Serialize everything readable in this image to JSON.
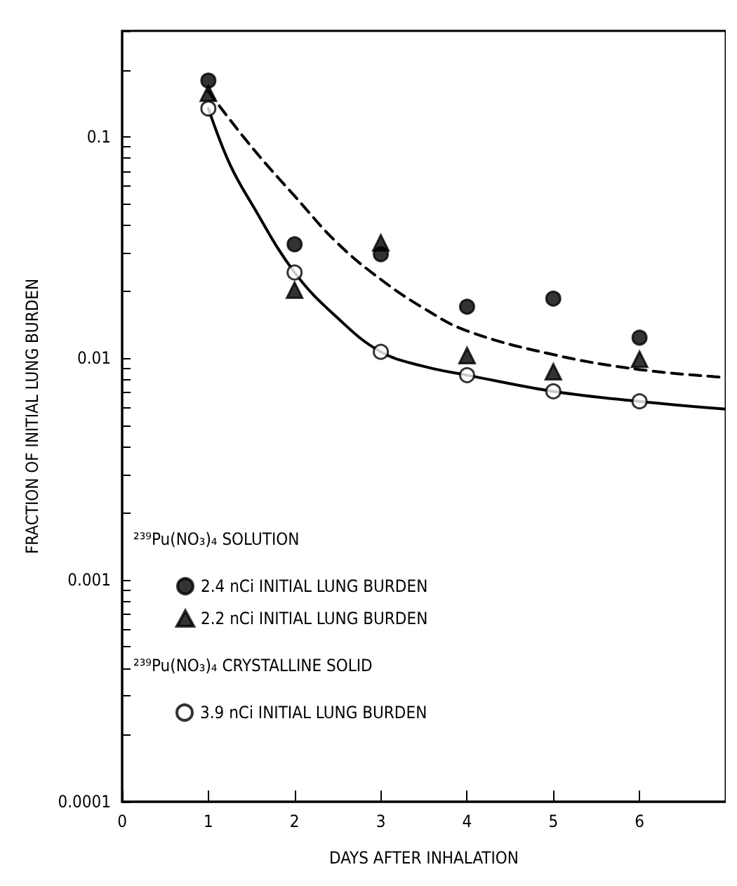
{
  "chart_data": {
    "type": "scatter",
    "xlabel": "DAYS AFTER INHALATION",
    "ylabel": "FRACTION OF INITIAL LUNG BURDEN",
    "xlim": [
      0,
      7
    ],
    "xticks": [
      0,
      1,
      2,
      3,
      4,
      5,
      6
    ],
    "ylim": [
      0.0001,
      0.3
    ],
    "log": "y",
    "yticks": [
      0.0001,
      {
        "value": 0.0002,
        "label": null
      },
      {
        "value": 0.0003,
        "label": null
      },
      {
        "value": 0.0004,
        "label": null
      },
      {
        "value": 0.0005,
        "label": null
      },
      {
        "value": 0.0006,
        "label": null
      },
      {
        "value": 0.0007,
        "label": null
      },
      {
        "value": 0.0008,
        "label": null
      },
      {
        "value": 0.0009,
        "label": null
      },
      0.001,
      {
        "value": 0.002,
        "label": null
      },
      {
        "value": 0.003,
        "label": null
      },
      {
        "value": 0.004,
        "label": null
      },
      {
        "value": 0.005,
        "label": null
      },
      {
        "value": 0.006,
        "label": null
      },
      {
        "value": 0.007,
        "label": null
      },
      {
        "value": 0.008,
        "label": null
      },
      {
        "value": 0.009,
        "label": null
      },
      0.01,
      {
        "value": 0.02,
        "label": null
      },
      {
        "value": 0.03,
        "label": null
      },
      {
        "value": 0.04,
        "label": null
      },
      {
        "value": 0.05,
        "label": null
      },
      {
        "value": 0.06,
        "label": null
      },
      {
        "value": 0.07,
        "label": null
      },
      {
        "value": 0.08,
        "label": null
      },
      {
        "value": 0.09,
        "label": null
      },
      0.1,
      {
        "value": 0.2,
        "label": null
      },
      {
        "value": 0.3,
        "label": null
      }
    ],
    "grid": false,
    "legend": "left",
    "annotations": [
      "²³⁹Pu(NO₃)₄ SOLUTION",
      "²³⁹Pu(NO₃)₄ CRYSTALLINE SOLID"
    ],
    "series": [
      {
        "name": "2.4 nCi INITIAL LUNG BURDEN",
        "marker": "circle",
        "color": "#000000",
        "x": [
          1,
          2,
          3,
          4,
          5,
          6
        ],
        "values": [
          0.179,
          0.0327,
          0.0295,
          0.0171,
          0.0186,
          0.0124
        ]
      },
      {
        "name": "2.2 nCi INITIAL LUNG BURDEN",
        "marker": "triangle",
        "color": "#000000",
        "x": [
          1,
          2,
          3,
          4,
          5,
          6
        ],
        "values": [
          0.157,
          0.0203,
          0.0332,
          0.0103,
          0.0087,
          0.0099
        ]
      },
      {
        "name": "3.9 nCi INITIAL LUNG BURDEN",
        "marker": "circle",
        "color": "#ffffff",
        "x": [
          1,
          2,
          3,
          4,
          5,
          6
        ],
        "values": [
          0.134,
          0.0244,
          0.0107,
          0.0084,
          0.0071,
          0.0064
        ]
      },
      {
        "type": "line",
        "marker": "none",
        "line_style": "dashed",
        "color": "#000000",
        "x": [
          1,
          1.5,
          2,
          2.5,
          3,
          3.5,
          4,
          5,
          6,
          7
        ],
        "values": [
          0.16,
          0.09,
          0.054,
          0.033,
          0.0227,
          0.0168,
          0.0133,
          0.0104,
          0.0089,
          0.0082
        ]
      },
      {
        "type": "line",
        "marker": "none",
        "line_style": "solid",
        "color": "#000000",
        "x": [
          1,
          1.25,
          1.5,
          2,
          2.5,
          3,
          3.5,
          4,
          5,
          6,
          7
        ],
        "values": [
          0.134,
          0.075,
          0.05,
          0.0244,
          0.0152,
          0.0107,
          0.0092,
          0.0084,
          0.0071,
          0.0064,
          0.0059
        ]
      }
    ]
  }
}
